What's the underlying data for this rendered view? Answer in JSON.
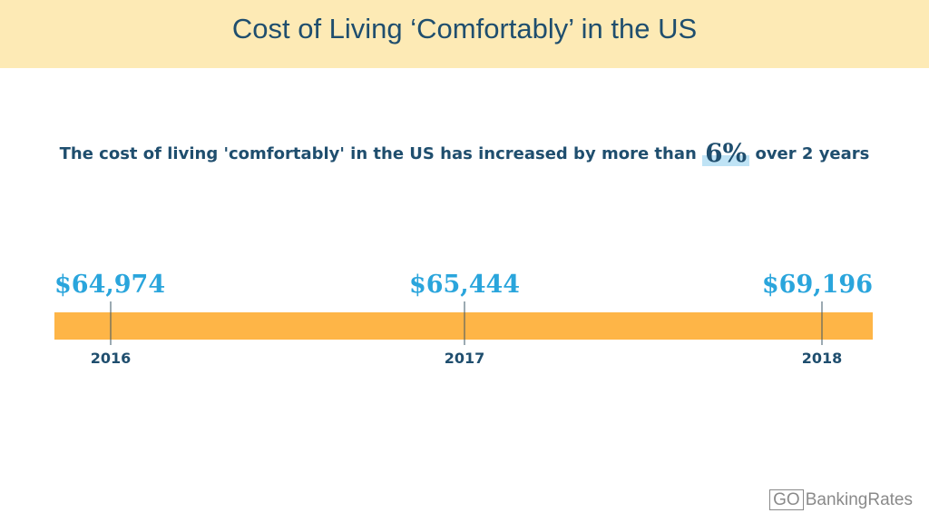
{
  "header": {
    "title": "Cost of Living ‘Comfortably’ in the US"
  },
  "subtitle": {
    "before": "The cost of living 'comfortably' in the US has increased by more than",
    "highlight": "6%",
    "after": "over 2 years"
  },
  "brand": {
    "logo_box": "GO",
    "logo_text": "BankingRates"
  },
  "colors": {
    "header_band": "#fdeab5",
    "title": "#1f4e6e",
    "value_labels": "#2aa5dc",
    "timeline_bar": "#feb547",
    "highlight": "#bfe3f5"
  },
  "chart_data": {
    "type": "timeline",
    "x": [
      "2016",
      "2017",
      "2018"
    ],
    "values": [
      64974,
      65444,
      69196
    ],
    "value_labels": [
      "$64,974",
      "$65,444",
      "$69,196"
    ]
  }
}
